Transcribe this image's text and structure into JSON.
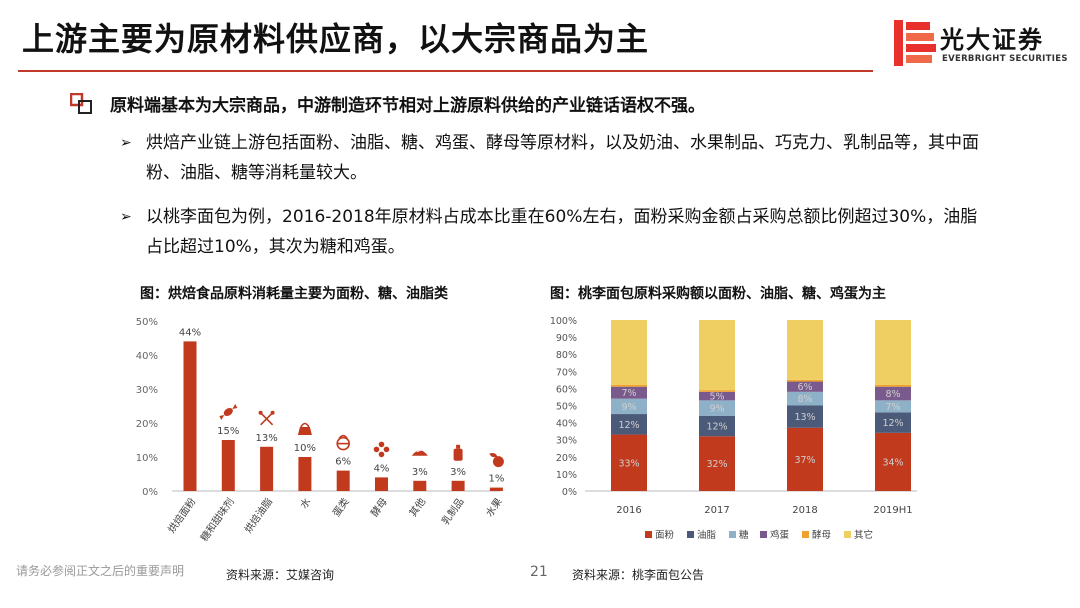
{
  "slide": {
    "title": "上游主要为原材料供应商，以大宗商品为主",
    "lead": "原料端基本为大宗商品，中游制造环节相对上游原料供给的产业链话语权不强。",
    "bullets": [
      {
        "marker": "➢",
        "text": "烘焙产业链上游包括面粉、油脂、糖、鸡蛋、酵母等原材料，以及奶油、水果制品、巧克力、乳制品等，其中面粉、油脂、糖等消耗量较大。"
      },
      {
        "marker": "➢",
        "text": "以桃李面包为例，2016-2018年原材料占成本比重在60%左右，面粉采购金额占采购总额比例超过30%，油脂占比超过10%，其次为糖和鸡蛋。"
      }
    ]
  },
  "logo": {
    "name": "光大证券",
    "en": "EVERBRIGHT SECURITIES",
    "color": "#e8312d"
  },
  "footer": {
    "note": "请务必参阅正文之后的重要声明",
    "page": "21",
    "source1": "资料来源：艾媒咨询",
    "source2": "资料来源：桃李面包公告"
  },
  "colors": {
    "red": "#c0392b"
  },
  "chart_data": [
    {
      "type": "bar",
      "title": "图：烘焙食品原料消耗量主要为面粉、糖、油脂类",
      "categories": [
        "烘焙面粉",
        "糖和甜味剂",
        "烘焙油脂",
        "水",
        "蛋类",
        "酵母",
        "其他",
        "乳制品",
        "水果"
      ],
      "values": [
        44,
        15,
        13,
        10,
        6,
        4,
        3,
        3,
        1
      ],
      "value_labels": [
        "44%",
        "15%",
        "13%",
        "10%",
        "6%",
        "4%",
        "3%",
        "3%",
        "1%"
      ],
      "icons": [
        "",
        "candy-icon",
        "wrench-cross-icon",
        "kettle-icon",
        "basket-icon",
        "flower-icon",
        "pie-icon",
        "bottle-icon",
        "fruit-icon"
      ],
      "yticks": [
        "0%",
        "10%",
        "20%",
        "30%",
        "40%",
        "50%"
      ],
      "ylim": [
        0,
        50
      ],
      "color": "#c23a1e"
    },
    {
      "type": "bar",
      "stacked": true,
      "title": "图：桃李面包原料采购额以面粉、油脂、糖、鸡蛋为主",
      "categories": [
        "2016",
        "2017",
        "2018",
        "2019H1"
      ],
      "yticks": [
        "0%",
        "10%",
        "20%",
        "30%",
        "40%",
        "50%",
        "60%",
        "70%",
        "80%",
        "90%",
        "100%"
      ],
      "ylim": [
        0,
        100
      ],
      "series": [
        {
          "name": "面粉",
          "color": "#c23a1e",
          "values": [
            33,
            32,
            37,
            34
          ],
          "labels": [
            "33%",
            "32%",
            "37%",
            "34%"
          ]
        },
        {
          "name": "油脂",
          "color": "#4b5a78",
          "values": [
            12,
            12,
            13,
            12
          ],
          "labels": [
            "12%",
            "12%",
            "13%",
            "12%"
          ]
        },
        {
          "name": "糖",
          "color": "#8fb1c8",
          "values": [
            9,
            9,
            8,
            7
          ],
          "labels": [
            "9%",
            "9%",
            "8%",
            "7%"
          ]
        },
        {
          "name": "鸡蛋",
          "color": "#7a5a8c",
          "values": [
            7,
            5,
            6,
            8
          ],
          "labels": [
            "7%",
            "5%",
            "6%",
            "8%"
          ]
        },
        {
          "name": "酵母",
          "color": "#f0a22e",
          "values": [
            1,
            1,
            1,
            1
          ],
          "labels": [
            "",
            "",
            "",
            ""
          ]
        },
        {
          "name": "其它",
          "color": "#f0cf62",
          "values": [
            38,
            41,
            35,
            38
          ],
          "labels": [
            "",
            "",
            "",
            ""
          ]
        }
      ]
    }
  ]
}
